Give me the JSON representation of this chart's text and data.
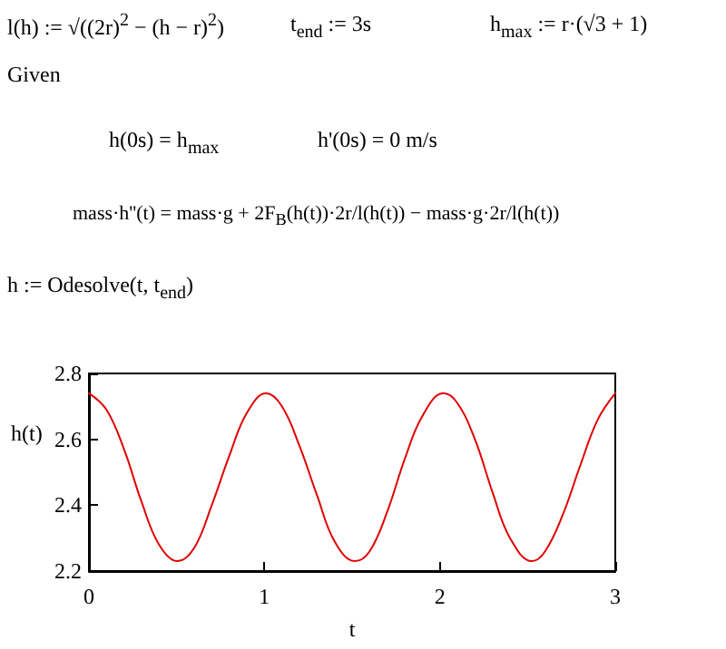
{
  "chart_data": {
    "type": "line",
    "ylabel": "h(t)",
    "xlabel": "t",
    "annotations": [
      "l(h) := √((2r)$^{2}$ − (h − r)$^{2}$)",
      "t$_{end}$ := 3s",
      "h$_{max}$ := r·(√3 + 1)",
      "Given",
      "h(0s) = h$_{max}$",
      "h'(0s) = 0 m/s",
      "mass·h''(t) = mass·g + 2F$_{B}$(h(t))·2r/l(h(t)) − mass·g·2r/l(h(t))",
      "h := Odesolve(t, t$_{end}$)"
    ],
    "series": [
      {
        "color": "#e00000",
        "x": [
          0,
          0.1,
          0.2,
          0.3,
          0.4,
          0.505,
          0.6,
          0.7,
          0.8,
          0.9,
          1.01,
          1.1,
          1.2,
          1.3,
          1.4,
          1.515,
          1.6,
          1.7,
          1.8,
          1.9,
          2.02,
          2.1,
          2.2,
          2.3,
          2.4,
          2.525,
          2.6,
          2.7,
          2.8,
          2.9,
          3.0
        ],
        "values": [
          2.74,
          2.69,
          2.57,
          2.41,
          2.28,
          2.23,
          2.27,
          2.4,
          2.55,
          2.68,
          2.74,
          2.7,
          2.58,
          2.43,
          2.29,
          2.23,
          2.26,
          2.38,
          2.54,
          2.67,
          2.74,
          2.71,
          2.6,
          2.44,
          2.3,
          2.23,
          2.26,
          2.37,
          2.52,
          2.66,
          2.74
        ]
      }
    ],
    "xlim": [
      0,
      3
    ],
    "xticks": [
      0,
      1,
      2,
      3
    ],
    "ylim": [
      2.2,
      2.8
    ],
    "yticks": [
      2.2,
      2.4,
      2.6,
      2.8
    ],
    "grid": false,
    "marker": "none",
    "line_style": "solid"
  }
}
